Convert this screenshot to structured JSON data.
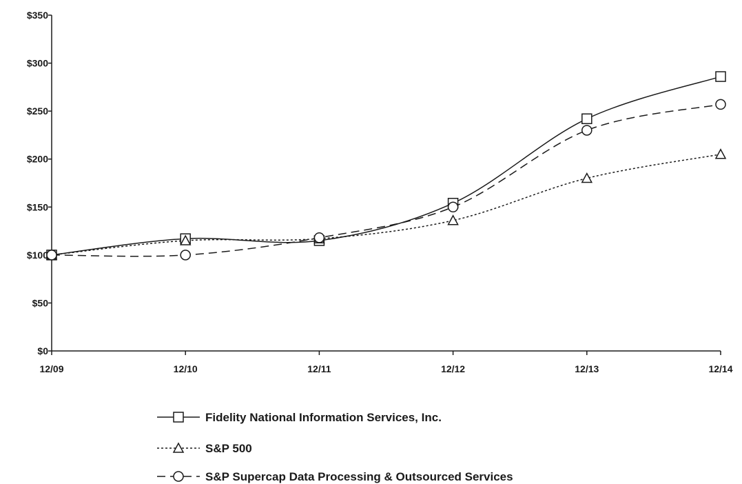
{
  "chart_data": {
    "type": "line",
    "categories": [
      "12/09",
      "12/10",
      "12/11",
      "12/12",
      "12/13",
      "12/14"
    ],
    "y_ticks": [
      "$0",
      "$50",
      "$100",
      "$150",
      "$200",
      "$250",
      "$300",
      "$350"
    ],
    "ylim": [
      0,
      350
    ],
    "grid": false,
    "legend_position": "bottom",
    "series": [
      {
        "name": "Fidelity National Information Services, Inc.",
        "values": [
          100,
          117,
          115,
          154,
          242,
          286
        ],
        "marker": "square",
        "line_style": "solid",
        "color": "#1a1a1a"
      },
      {
        "name": "S&P 500",
        "values": [
          100,
          115,
          117,
          136,
          180,
          205
        ],
        "marker": "triangle",
        "line_style": "dotted",
        "color": "#1a1a1a"
      },
      {
        "name": "S&P Supercap Data Processing & Outsourced Services",
        "values": [
          100,
          100,
          118,
          150,
          230,
          257
        ],
        "marker": "circle",
        "line_style": "dashed",
        "color": "#1a1a1a"
      }
    ]
  }
}
